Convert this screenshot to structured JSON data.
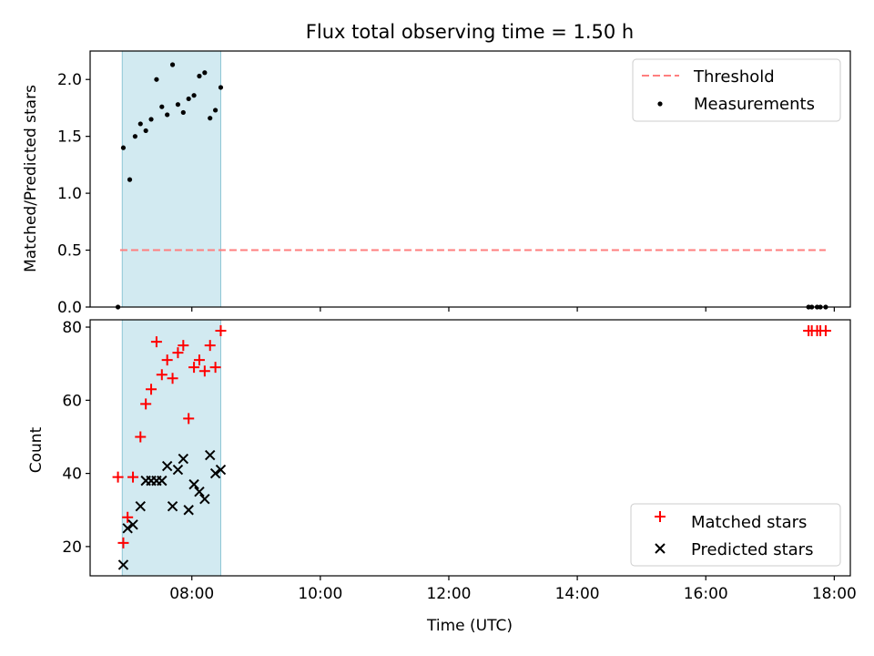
{
  "chart_data": [
    {
      "type": "scatter",
      "title": "Flux total observing time = 1.50 h",
      "ylabel": "Matched/Predicted stars",
      "xlim": [
        "06:25",
        "18:15"
      ],
      "ylim": [
        0,
        2.25
      ],
      "x_ticks": [
        "08:00",
        "10:00",
        "12:00",
        "14:00",
        "16:00",
        "18:00"
      ],
      "y_ticks": [
        "0.0",
        "0.5",
        "1.0",
        "1.5",
        "2.0"
      ],
      "shaded_span": [
        "06:55",
        "08:27"
      ],
      "threshold": {
        "name": "Threshold",
        "y": 0.5,
        "x_range": [
          "06:53",
          "17:52"
        ],
        "color": "#ff7f7f",
        "style": "dashed"
      },
      "series": [
        {
          "name": "Measurements",
          "marker": "dot",
          "color": "#000000",
          "points": [
            {
              "x": "06:51",
              "y": 0.0
            },
            {
              "x": "06:56",
              "y": 1.4
            },
            {
              "x": "07:02",
              "y": 1.12
            },
            {
              "x": "07:07",
              "y": 1.5
            },
            {
              "x": "07:12",
              "y": 1.61
            },
            {
              "x": "07:17",
              "y": 1.55
            },
            {
              "x": "07:22",
              "y": 1.65
            },
            {
              "x": "07:27",
              "y": 2.0
            },
            {
              "x": "07:32",
              "y": 1.76
            },
            {
              "x": "07:37",
              "y": 1.69
            },
            {
              "x": "07:42",
              "y": 2.13
            },
            {
              "x": "07:47",
              "y": 1.78
            },
            {
              "x": "07:52",
              "y": 1.71
            },
            {
              "x": "07:57",
              "y": 1.83
            },
            {
              "x": "08:02",
              "y": 1.86
            },
            {
              "x": "08:07",
              "y": 2.03
            },
            {
              "x": "08:12",
              "y": 2.06
            },
            {
              "x": "08:17",
              "y": 1.66
            },
            {
              "x": "08:22",
              "y": 1.73
            },
            {
              "x": "08:27",
              "y": 1.93
            },
            {
              "x": "17:36",
              "y": 0.0
            },
            {
              "x": "17:39",
              "y": 0.0
            },
            {
              "x": "17:44",
              "y": 0.0
            },
            {
              "x": "17:47",
              "y": 0.0
            },
            {
              "x": "17:52",
              "y": 0.0
            }
          ]
        }
      ],
      "legend": {
        "position": "top-right",
        "entries": [
          "Threshold",
          "Measurements"
        ]
      }
    },
    {
      "type": "scatter",
      "xlabel": "Time (UTC)",
      "ylabel": "Count",
      "xlim": [
        "06:25",
        "18:15"
      ],
      "ylim": [
        12,
        82
      ],
      "x_ticks": [
        "08:00",
        "10:00",
        "12:00",
        "14:00",
        "16:00",
        "18:00"
      ],
      "y_ticks": [
        "20",
        "40",
        "60",
        "80"
      ],
      "shaded_span": [
        "06:55",
        "08:27"
      ],
      "series": [
        {
          "name": "Matched stars",
          "marker": "plus",
          "color": "#ff0000",
          "points": [
            {
              "x": "06:51",
              "y": 39
            },
            {
              "x": "06:56",
              "y": 21
            },
            {
              "x": "07:00",
              "y": 28
            },
            {
              "x": "07:05",
              "y": 39
            },
            {
              "x": "07:12",
              "y": 50
            },
            {
              "x": "07:17",
              "y": 59
            },
            {
              "x": "07:22",
              "y": 63
            },
            {
              "x": "07:27",
              "y": 76
            },
            {
              "x": "07:32",
              "y": 67
            },
            {
              "x": "07:37",
              "y": 71
            },
            {
              "x": "07:42",
              "y": 66
            },
            {
              "x": "07:47",
              "y": 73
            },
            {
              "x": "07:52",
              "y": 75
            },
            {
              "x": "07:57",
              "y": 55
            },
            {
              "x": "08:02",
              "y": 69
            },
            {
              "x": "08:07",
              "y": 71
            },
            {
              "x": "08:12",
              "y": 68
            },
            {
              "x": "08:17",
              "y": 75
            },
            {
              "x": "08:22",
              "y": 69
            },
            {
              "x": "08:27",
              "y": 79
            },
            {
              "x": "17:36",
              "y": 79
            },
            {
              "x": "17:39",
              "y": 79
            },
            {
              "x": "17:44",
              "y": 79
            },
            {
              "x": "17:47",
              "y": 79
            },
            {
              "x": "17:52",
              "y": 79
            }
          ]
        },
        {
          "name": "Predicted stars",
          "marker": "x",
          "color": "#000000",
          "points": [
            {
              "x": "06:56",
              "y": 15
            },
            {
              "x": "07:00",
              "y": 25
            },
            {
              "x": "07:05",
              "y": 26
            },
            {
              "x": "07:12",
              "y": 31
            },
            {
              "x": "07:17",
              "y": 38
            },
            {
              "x": "07:22",
              "y": 38
            },
            {
              "x": "07:27",
              "y": 38
            },
            {
              "x": "07:32",
              "y": 38
            },
            {
              "x": "07:37",
              "y": 42
            },
            {
              "x": "07:42",
              "y": 31
            },
            {
              "x": "07:47",
              "y": 41
            },
            {
              "x": "07:52",
              "y": 44
            },
            {
              "x": "07:57",
              "y": 30
            },
            {
              "x": "08:02",
              "y": 37
            },
            {
              "x": "08:07",
              "y": 35
            },
            {
              "x": "08:12",
              "y": 33
            },
            {
              "x": "08:17",
              "y": 45
            },
            {
              "x": "08:22",
              "y": 40
            },
            {
              "x": "08:27",
              "y": 41
            }
          ]
        }
      ],
      "legend": {
        "position": "bottom-right",
        "entries": [
          "Matched stars",
          "Predicted stars"
        ]
      }
    }
  ]
}
